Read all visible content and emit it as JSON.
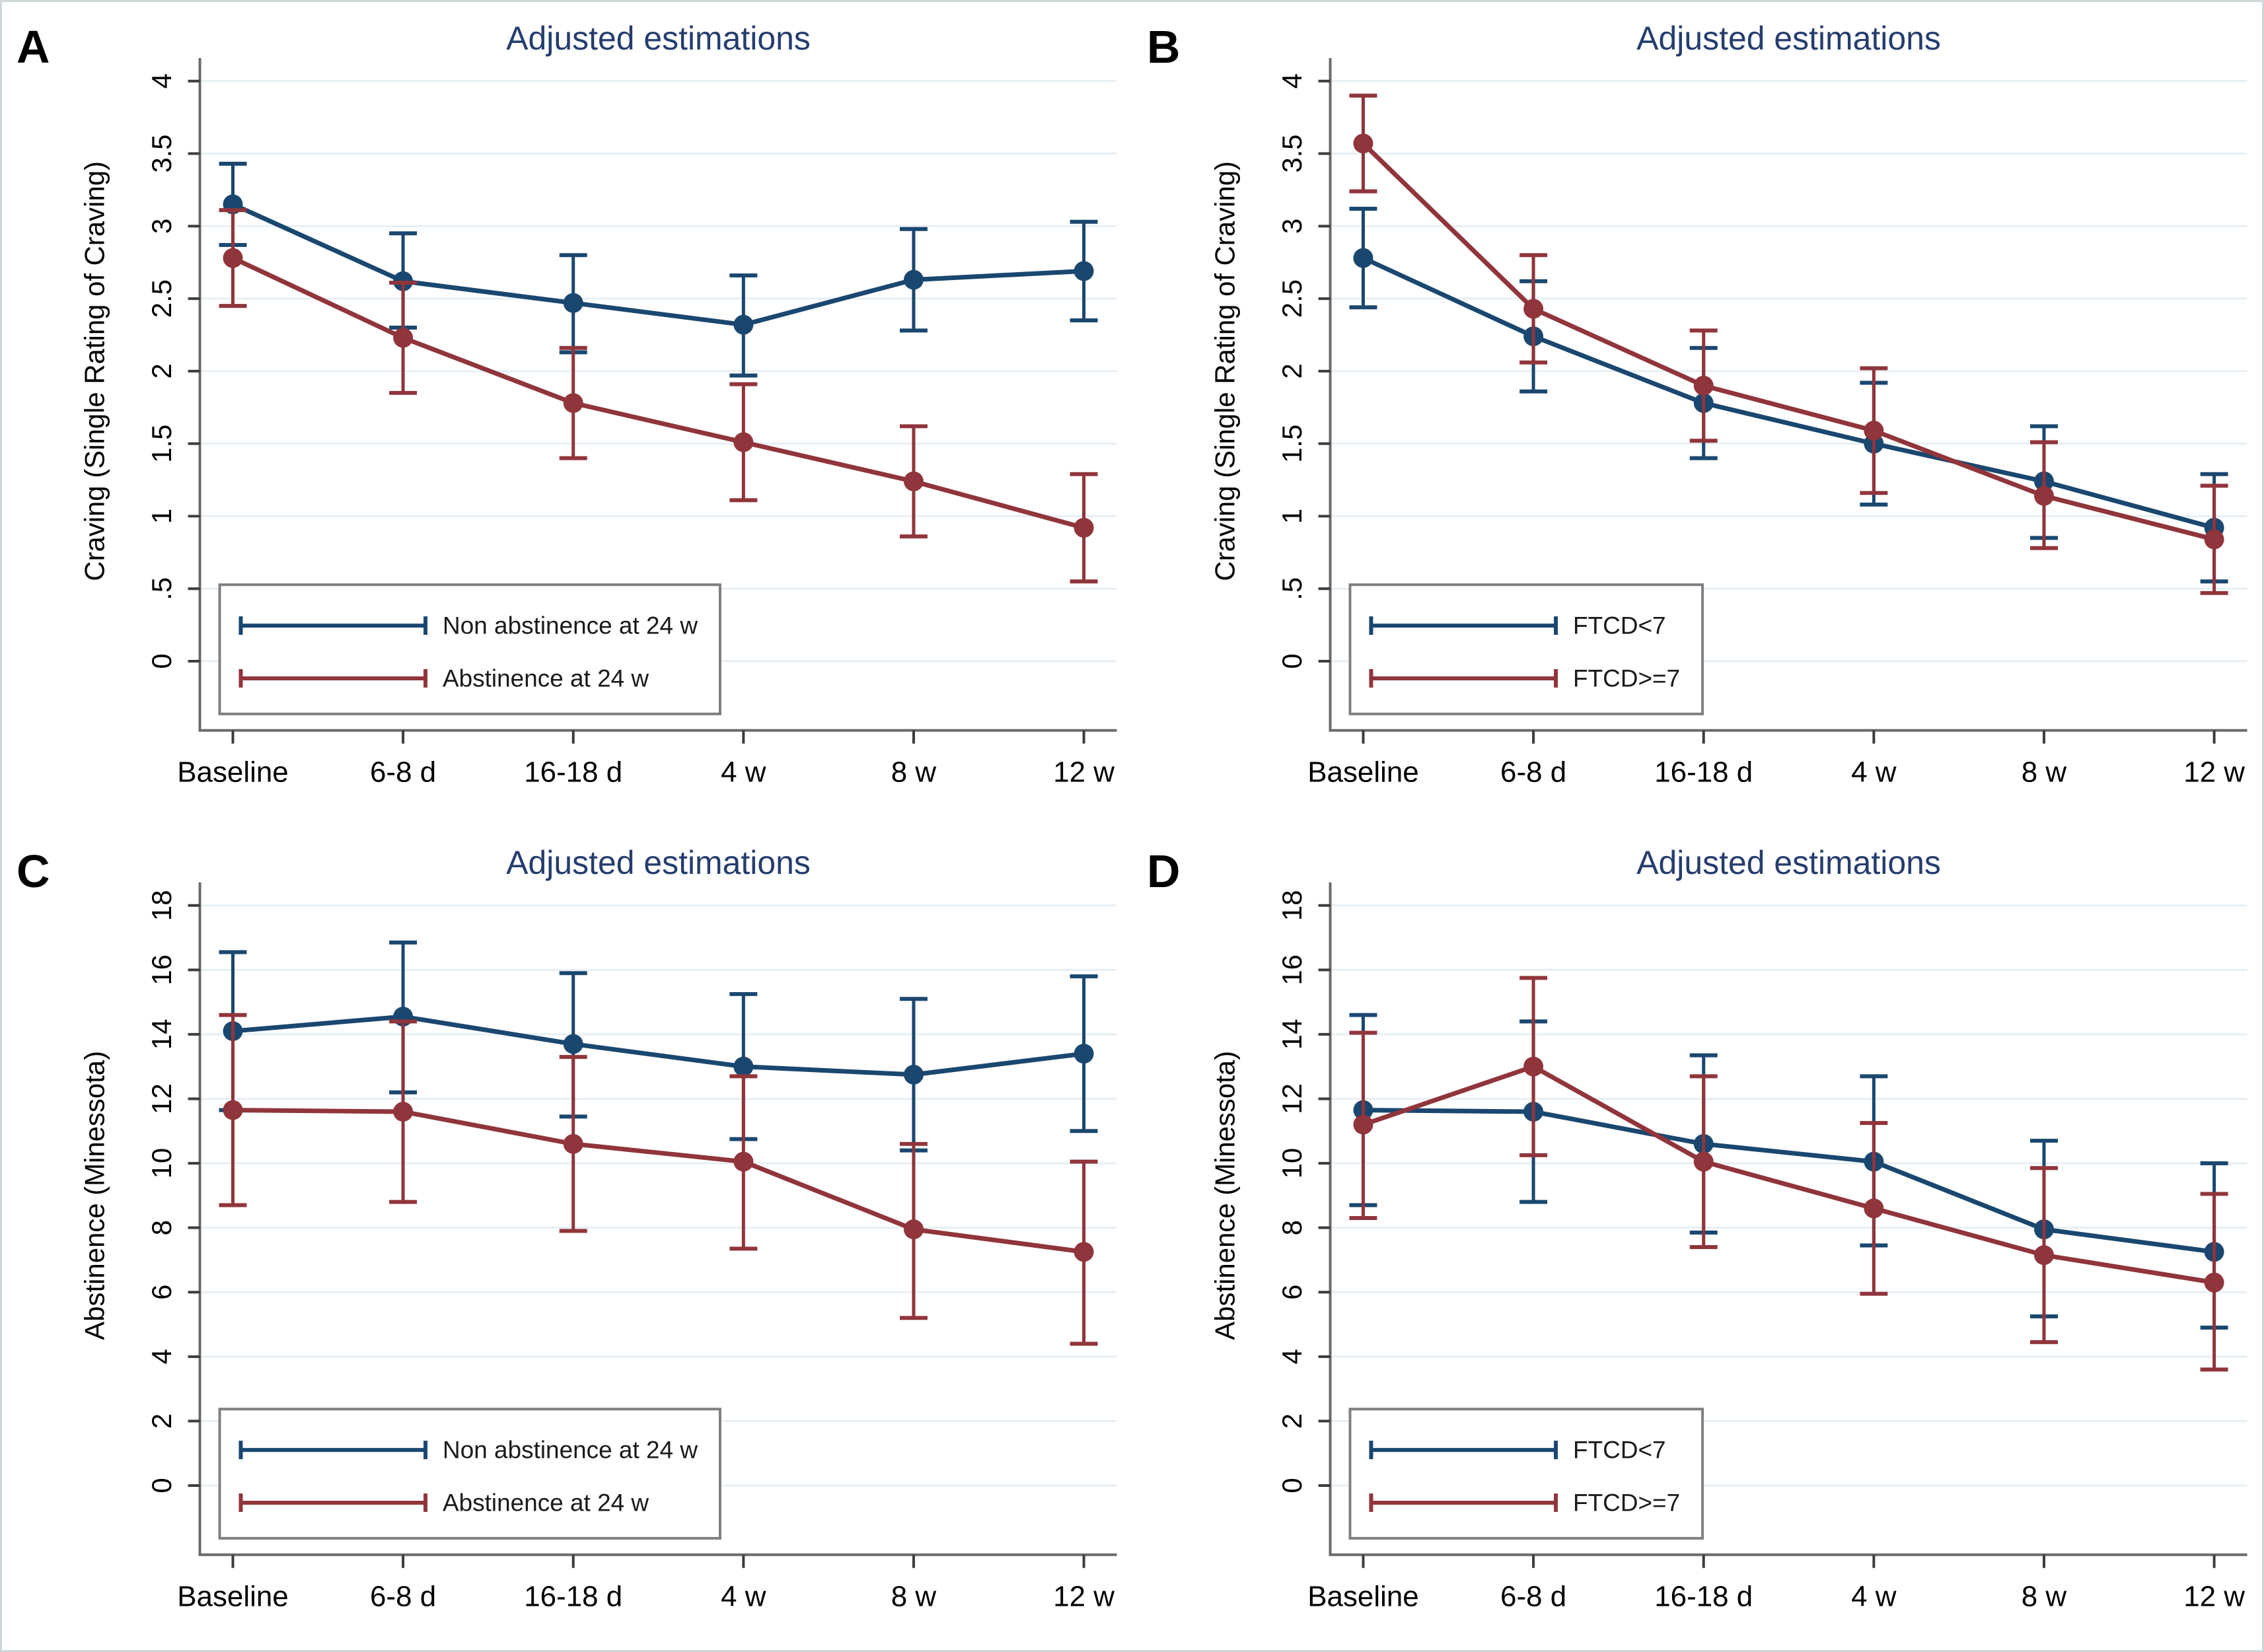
{
  "figure": {
    "background": "#ffffff",
    "border_color": "#cfd6da"
  },
  "colors": {
    "navy_series": "#1a476f",
    "maroon_series": "#90353b",
    "title_text": "#253d6e",
    "panel_letter": "#000000",
    "gridline": "#e7eff4",
    "axis_line": "#6b6b6b",
    "tick_mark": "#3c3c3c",
    "tick_text": "#000000",
    "legend_border": "#7f7f7f",
    "legend_text": "#1a1a1a"
  },
  "chart_data": [
    {
      "id": "A",
      "panel_label": "A",
      "type": "line",
      "title": "Adjusted estimations",
      "xlabel": "",
      "ylabel": "Craving (Single Rating of Craving)",
      "categories": [
        "Baseline",
        "6-8 d",
        "16-18 d",
        "4 w",
        "8 w",
        "12 w"
      ],
      "ylim": [
        0,
        4
      ],
      "ytick_step": 0.5,
      "ytick_labels": [
        "0",
        ".5",
        "1",
        "1.5",
        "2",
        "2.5",
        "3",
        "3.5",
        "4"
      ],
      "grid": true,
      "legend_position": "bottom-left",
      "error_bars": true,
      "series": [
        {
          "name": "Non abstinence at 24 w",
          "color": "#1a476f",
          "values": [
            3.15,
            2.62,
            2.47,
            2.32,
            2.63,
            2.69
          ],
          "ci_low": [
            2.87,
            2.3,
            2.13,
            1.97,
            2.28,
            2.35
          ],
          "ci_high": [
            3.43,
            2.95,
            2.8,
            2.66,
            2.98,
            3.03
          ]
        },
        {
          "name": "Abstinence at 24 w",
          "color": "#90353b",
          "values": [
            2.78,
            2.23,
            1.78,
            1.51,
            1.24,
            0.92
          ],
          "ci_low": [
            2.45,
            1.85,
            1.4,
            1.11,
            0.86,
            0.55
          ],
          "ci_high": [
            3.11,
            2.61,
            2.16,
            1.91,
            1.62,
            1.29
          ]
        }
      ]
    },
    {
      "id": "B",
      "panel_label": "B",
      "type": "line",
      "title": "Adjusted estimations",
      "xlabel": "",
      "ylabel": "Craving (Single Rating of Craving)",
      "categories": [
        "Baseline",
        "6-8 d",
        "16-18 d",
        "4 w",
        "8 w",
        "12 w"
      ],
      "ylim": [
        0,
        4
      ],
      "ytick_step": 0.5,
      "ytick_labels": [
        "0",
        ".5",
        "1",
        "1.5",
        "2",
        "2.5",
        "3",
        "3.5",
        "4"
      ],
      "grid": true,
      "legend_position": "bottom-left",
      "error_bars": true,
      "series": [
        {
          "name": "FTCD<7",
          "color": "#1a476f",
          "values": [
            2.78,
            2.24,
            1.78,
            1.5,
            1.24,
            0.92
          ],
          "ci_low": [
            2.44,
            1.86,
            1.4,
            1.08,
            0.85,
            0.55
          ],
          "ci_high": [
            3.12,
            2.62,
            2.16,
            1.92,
            1.62,
            1.29
          ]
        },
        {
          "name": "FTCD>=7",
          "color": "#90353b",
          "values": [
            3.57,
            2.43,
            1.9,
            1.59,
            1.14,
            0.84
          ],
          "ci_low": [
            3.24,
            2.06,
            1.52,
            1.16,
            0.78,
            0.47
          ],
          "ci_high": [
            3.9,
            2.8,
            2.28,
            2.02,
            1.51,
            1.21
          ]
        }
      ]
    },
    {
      "id": "C",
      "panel_label": "C",
      "type": "line",
      "title": "Adjusted estimations",
      "xlabel": "",
      "ylabel": "Abstinence (Minessota)",
      "categories": [
        "Baseline",
        "6-8 d",
        "16-18 d",
        "4 w",
        "8 w",
        "12 w"
      ],
      "ylim": [
        0,
        18
      ],
      "ytick_step": 2,
      "ytick_labels": [
        "0",
        "2",
        "4",
        "6",
        "8",
        "10",
        "12",
        "14",
        "16",
        "18"
      ],
      "grid": true,
      "legend_position": "bottom-left",
      "error_bars": true,
      "series": [
        {
          "name": "Non abstinence at 24 w",
          "color": "#1a476f",
          "values": [
            14.1,
            14.55,
            13.7,
            13.0,
            12.75,
            13.4
          ],
          "ci_low": [
            11.65,
            12.2,
            11.45,
            10.75,
            10.4,
            11.0
          ],
          "ci_high": [
            16.55,
            16.85,
            15.9,
            15.25,
            15.1,
            15.8
          ]
        },
        {
          "name": "Abstinence at 24 w",
          "color": "#90353b",
          "values": [
            11.65,
            11.6,
            10.6,
            10.05,
            7.95,
            7.25
          ],
          "ci_low": [
            8.7,
            8.8,
            7.9,
            7.35,
            5.2,
            4.4
          ],
          "ci_high": [
            14.6,
            14.4,
            13.3,
            12.7,
            10.6,
            10.05
          ]
        }
      ]
    },
    {
      "id": "D",
      "panel_label": "D",
      "type": "line",
      "title": "Adjusted estimations",
      "xlabel": "",
      "ylabel": "Abstinence (Minessota)",
      "categories": [
        "Baseline",
        "6-8 d",
        "16-18 d",
        "4 w",
        "8 w",
        "12 w"
      ],
      "ylim": [
        0,
        18
      ],
      "ytick_step": 2,
      "ytick_labels": [
        "0",
        "2",
        "4",
        "6",
        "8",
        "10",
        "12",
        "14",
        "16",
        "18"
      ],
      "grid": true,
      "legend_position": "bottom-left",
      "error_bars": true,
      "series": [
        {
          "name": "FTCD<7",
          "color": "#1a476f",
          "values": [
            11.65,
            11.6,
            10.6,
            10.05,
            7.95,
            7.25
          ],
          "ci_low": [
            8.7,
            8.8,
            7.85,
            7.45,
            5.25,
            4.9
          ],
          "ci_high": [
            14.6,
            14.4,
            13.35,
            12.7,
            10.7,
            10.0
          ]
        },
        {
          "name": "FTCD>=7",
          "color": "#90353b",
          "values": [
            11.2,
            13.0,
            10.05,
            8.6,
            7.15,
            6.3
          ],
          "ci_low": [
            8.3,
            10.25,
            7.4,
            5.95,
            4.45,
            3.6
          ],
          "ci_high": [
            14.05,
            15.75,
            12.7,
            11.25,
            9.85,
            9.05
          ]
        }
      ]
    }
  ]
}
